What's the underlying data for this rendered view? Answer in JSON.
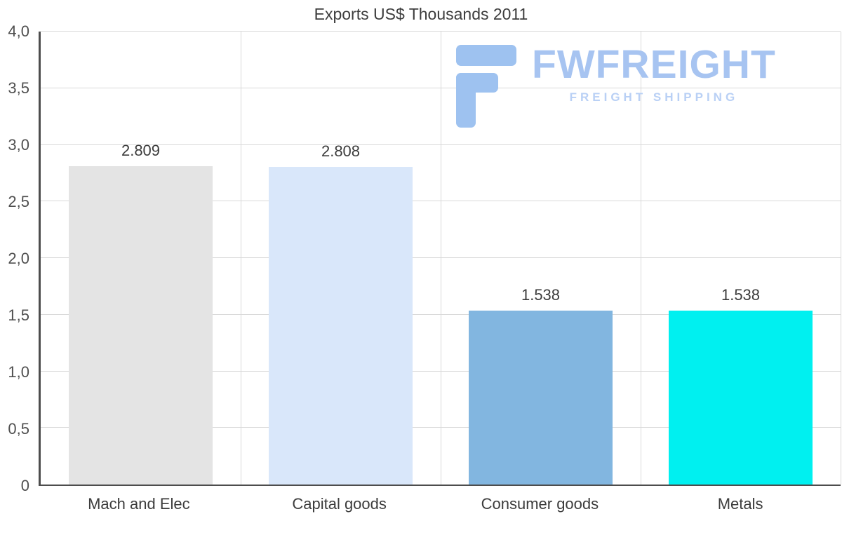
{
  "chart_data": {
    "type": "bar",
    "title": "Exports US$ Thousands 2011",
    "categories": [
      "Mach and Elec",
      "Capital goods",
      "Consumer goods",
      "Metals"
    ],
    "values": [
      2.809,
      2.808,
      1.538,
      1.538
    ],
    "value_labels": [
      "2.809",
      "2.808",
      "1.538",
      "1.538"
    ],
    "bar_colors": [
      "#e4e4e4",
      "#d9e7fa",
      "#82b6e0",
      "#00f0f0"
    ],
    "xlabel": "",
    "ylabel": "",
    "ylim": [
      0,
      4
    ],
    "y_ticks": [
      0,
      0.5,
      1,
      1.5,
      2,
      2.5,
      3,
      3.5,
      4
    ],
    "y_tick_labels": [
      "0",
      "0,5",
      "1,0",
      "1,5",
      "2,0",
      "2,5",
      "3,0",
      "3,5",
      "4,0"
    ],
    "grid": "horizontal and vertical light gray gridlines",
    "legend": "none"
  },
  "logo": {
    "name": "FWFREIGHT",
    "subtitle": "FREIGHT SHIPPING",
    "icon": "fwfreight-f-mark-icon",
    "color": "#a7c4f1",
    "subtitle_color": "#b9d0f5"
  },
  "colors": {
    "axis": "#4d4d4d",
    "gridline": "#d9d9d9",
    "title_text": "#3d3d3d",
    "tick_text": "#4f4f4f",
    "label_text": "#3c3c3c",
    "background": "#ffffff"
  }
}
